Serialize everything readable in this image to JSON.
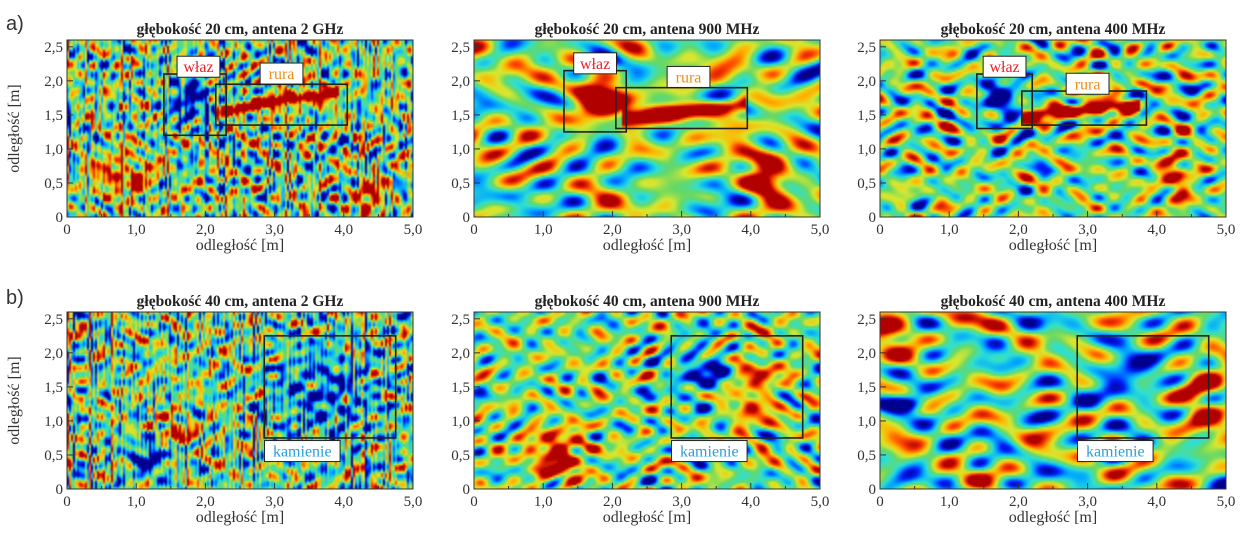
{
  "figure": {
    "row_labels": [
      "a)",
      "b)"
    ]
  },
  "colors": {
    "colormap": [
      "#00008f",
      "#0020ff",
      "#00a8ff",
      "#30e0d0",
      "#66d866",
      "#d8e830",
      "#ffb400",
      "#ff4000",
      "#b00000"
    ],
    "background": "#48d4a0",
    "label_red": "#e8202a",
    "label_orange": "#f08c1a",
    "label_blue": "#2a9ed8",
    "box_stroke": "#222222"
  },
  "chart_data": [
    {
      "type": "heatmap",
      "title": "głębokość 20 cm, antena 2 GHz",
      "xlabel": "odległość [m]",
      "ylabel": "odległość [m]",
      "xlim": [
        0,
        5
      ],
      "ylim": [
        0,
        2.6
      ],
      "xticks": [
        "0",
        "1,0",
        "2,0",
        "3,0",
        "4,0",
        "5,0"
      ],
      "yticks": [
        "0",
        "0,5",
        "1,0",
        "1,5",
        "2,0",
        "2,5"
      ],
      "seed": 11,
      "texture": "fine",
      "features": [
        {
          "type": "pipe",
          "x0": 2.2,
          "x1": 3.9,
          "y0": 1.55,
          "y1": 1.85,
          "w": 0.09,
          "v": 1.0
        },
        {
          "type": "blob",
          "x": 1.8,
          "y": 1.7,
          "rx": 0.35,
          "ry": 0.35,
          "v": -0.7
        },
        {
          "type": "blob",
          "x": 0.8,
          "y": 0.6,
          "rx": 0.4,
          "ry": 0.3,
          "v": 0.7
        },
        {
          "type": "blob",
          "x": 4.4,
          "y": 0.3,
          "rx": 0.2,
          "ry": 0.3,
          "v": 0.8
        }
      ],
      "annotations": [
        {
          "text": "właz",
          "color_key": "label_red",
          "box": [
            1.4,
            1.2,
            2.3,
            2.1
          ],
          "label": [
            1.9,
            2.2
          ]
        },
        {
          "text": "rura",
          "color_key": "label_orange",
          "box": [
            2.15,
            1.35,
            4.05,
            1.95
          ],
          "label": [
            3.1,
            2.1
          ]
        }
      ]
    },
    {
      "type": "heatmap",
      "title": "głębokość 20 cm, antena 900 MHz",
      "xlabel": "odległość [m]",
      "ylabel": "",
      "xlim": [
        0,
        5
      ],
      "ylim": [
        0,
        2.6
      ],
      "xticks": [
        "0",
        "1,0",
        "2,0",
        "3,0",
        "4,0",
        "5,0"
      ],
      "yticks": [
        "0",
        "0,5",
        "1,0",
        "1,5",
        "2,0",
        "2,5"
      ],
      "seed": 23,
      "texture": "smooth",
      "features": [
        {
          "type": "blob",
          "x": 1.8,
          "y": 1.75,
          "rx": 0.4,
          "ry": 0.35,
          "v": 1.0
        },
        {
          "type": "pipe",
          "x0": 2.2,
          "x1": 3.9,
          "y0": 1.45,
          "y1": 1.65,
          "w": 0.12,
          "v": 1.0
        },
        {
          "type": "blob",
          "x": 4.2,
          "y": 0.6,
          "rx": 0.35,
          "ry": 0.5,
          "v": 0.8
        }
      ],
      "annotations": [
        {
          "text": "właz",
          "color_key": "label_red",
          "box": [
            1.3,
            1.25,
            2.2,
            2.15
          ],
          "label": [
            1.75,
            2.25
          ]
        },
        {
          "text": "rura",
          "color_key": "label_orange",
          "box": [
            2.05,
            1.3,
            3.95,
            1.9
          ],
          "label": [
            3.1,
            2.05
          ]
        }
      ]
    },
    {
      "type": "heatmap",
      "title": "głębokość 20 cm, antena 400 MHz",
      "xlabel": "odległość [m]",
      "ylabel": "",
      "xlim": [
        0,
        5
      ],
      "ylim": [
        0,
        2.6
      ],
      "xticks": [
        "0",
        "1,0",
        "2,0",
        "3,0",
        "4,0",
        "5,0"
      ],
      "yticks": [
        "0",
        "0,5",
        "1,0",
        "1,5",
        "2,0",
        "2,5"
      ],
      "seed": 37,
      "texture": "medium",
      "features": [
        {
          "type": "blob",
          "x": 1.75,
          "y": 1.75,
          "rx": 0.3,
          "ry": 0.3,
          "v": -0.8
        },
        {
          "type": "pipe",
          "x0": 2.1,
          "x1": 3.7,
          "y0": 1.5,
          "y1": 1.65,
          "w": 0.09,
          "v": 1.0
        },
        {
          "type": "blob",
          "x": 4.3,
          "y": 0.6,
          "rx": 0.2,
          "ry": 0.4,
          "v": 0.7
        }
      ],
      "annotations": [
        {
          "text": "właz",
          "color_key": "label_red",
          "box": [
            1.4,
            1.3,
            2.2,
            2.1
          ],
          "label": [
            1.8,
            2.2
          ]
        },
        {
          "text": "rura",
          "color_key": "label_orange",
          "box": [
            2.05,
            1.35,
            3.85,
            1.85
          ],
          "label": [
            3.0,
            1.95
          ]
        }
      ]
    },
    {
      "type": "heatmap",
      "title": "głębokość 40 cm, antena 2 GHz",
      "xlabel": "odległość [m]",
      "ylabel": "odległość [m]",
      "xlim": [
        0,
        5
      ],
      "ylim": [
        0,
        2.6
      ],
      "xticks": [
        "0",
        "1,0",
        "2,0",
        "3,0",
        "4,0",
        "5,0"
      ],
      "yticks": [
        "0",
        "0,5",
        "1,0",
        "1,5",
        "2,0",
        "2,5"
      ],
      "seed": 41,
      "texture": "fine",
      "features": [
        {
          "type": "blob",
          "x": 3.7,
          "y": 1.4,
          "rx": 0.8,
          "ry": 0.7,
          "v": -0.5
        },
        {
          "type": "blob",
          "x": 1.2,
          "y": 0.5,
          "rx": 0.3,
          "ry": 0.3,
          "v": -0.8
        },
        {
          "type": "blob",
          "x": 1.5,
          "y": 0.8,
          "rx": 0.3,
          "ry": 0.2,
          "v": 0.8
        }
      ],
      "annotations": [
        {
          "text": "kamienie",
          "color_key": "label_blue",
          "box": [
            2.85,
            0.75,
            4.75,
            2.25
          ],
          "label": [
            3.4,
            0.55
          ]
        }
      ]
    },
    {
      "type": "heatmap",
      "title": "głębokość 40 cm, antena 900 MHz",
      "xlabel": "odległość [m]",
      "ylabel": "",
      "xlim": [
        0,
        5
      ],
      "ylim": [
        0,
        2.6
      ],
      "xticks": [
        "0",
        "1,0",
        "2,0",
        "3,0",
        "4,0",
        "5,0"
      ],
      "yticks": [
        "0",
        "0,5",
        "1,0",
        "1,5",
        "2,0",
        "2,5"
      ],
      "seed": 53,
      "texture": "medium",
      "features": [
        {
          "type": "blob",
          "x": 1.2,
          "y": 0.5,
          "rx": 0.4,
          "ry": 0.35,
          "v": 0.9
        },
        {
          "type": "blob",
          "x": 4.0,
          "y": 1.5,
          "rx": 0.4,
          "ry": 0.6,
          "v": 0.6
        },
        {
          "type": "blob",
          "x": 3.4,
          "y": 1.7,
          "rx": 0.5,
          "ry": 0.4,
          "v": -0.6
        }
      ],
      "annotations": [
        {
          "text": "kamienie",
          "color_key": "label_blue",
          "box": [
            2.85,
            0.75,
            4.75,
            2.25
          ],
          "label": [
            3.4,
            0.55
          ]
        }
      ]
    },
    {
      "type": "heatmap",
      "title": "głębokość 40 cm, antena 400 MHz",
      "xlabel": "odległość [m]",
      "ylabel": "",
      "xlim": [
        0,
        5
      ],
      "ylim": [
        0,
        2.6
      ],
      "xticks": [
        "0",
        "1,0",
        "2,0",
        "3,0",
        "4,0",
        "5,0"
      ],
      "yticks": [
        "0",
        "0,5",
        "1,0",
        "1,5",
        "2,0",
        "2,5"
      ],
      "seed": 67,
      "texture": "smooth",
      "features": [
        {
          "type": "blob",
          "x": 0.1,
          "y": 2.5,
          "rx": 0.35,
          "ry": 0.35,
          "v": 1.0
        },
        {
          "type": "blob",
          "x": 0.45,
          "y": 1.25,
          "rx": 0.35,
          "ry": 0.12,
          "v": -0.9
        },
        {
          "type": "blob",
          "x": 4.7,
          "y": 1.3,
          "rx": 0.35,
          "ry": 0.4,
          "v": 0.8
        },
        {
          "type": "blob",
          "x": 3.6,
          "y": 1.6,
          "rx": 0.5,
          "ry": 0.4,
          "v": -0.5
        }
      ],
      "annotations": [
        {
          "text": "kamienie",
          "color_key": "label_blue",
          "box": [
            2.85,
            0.75,
            4.75,
            2.25
          ],
          "label": [
            3.4,
            0.55
          ]
        }
      ]
    }
  ]
}
